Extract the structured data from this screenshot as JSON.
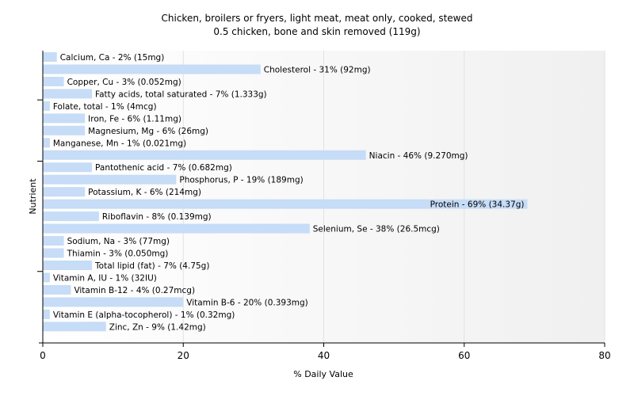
{
  "chart_data": {
    "type": "bar",
    "orientation": "horizontal",
    "title": "Chicken, broilers or fryers, light meat, meat only, cooked, stewed",
    "subtitle": "0.5 chicken, bone and skin removed (119g)",
    "xlabel": "% Daily Value",
    "ylabel": "Nutrient",
    "xlim": [
      0,
      80
    ],
    "xticks": [
      0,
      20,
      40,
      60,
      80
    ],
    "grid": true,
    "bar_color": "#c6dcf7",
    "categories": [
      "Calcium, Ca",
      "Cholesterol",
      "Copper, Cu",
      "Fatty acids, total saturated",
      "Folate, total",
      "Iron, Fe",
      "Magnesium, Mg",
      "Manganese, Mn",
      "Niacin",
      "Pantothenic acid",
      "Phosphorus, P",
      "Potassium, K",
      "Protein",
      "Riboflavin",
      "Selenium, Se",
      "Sodium, Na",
      "Thiamin",
      "Total lipid (fat)",
      "Vitamin A, IU",
      "Vitamin B-12",
      "Vitamin B-6",
      "Vitamin E (alpha-tocopherol)",
      "Zinc, Zn"
    ],
    "values": [
      2,
      31,
      3,
      7,
      1,
      6,
      6,
      1,
      46,
      7,
      19,
      6,
      69,
      8,
      38,
      3,
      3,
      7,
      1,
      4,
      20,
      1,
      9
    ],
    "labels": [
      "Calcium, Ca - 2% (15mg)",
      "Cholesterol - 31% (92mg)",
      "Copper, Cu - 3% (0.052mg)",
      "Fatty acids, total saturated - 7% (1.333g)",
      "Folate, total - 1% (4mcg)",
      "Iron, Fe - 6% (1.11mg)",
      "Magnesium, Mg - 6% (26mg)",
      "Manganese, Mn - 1% (0.021mg)",
      "Niacin - 46% (9.270mg)",
      "Pantothenic acid - 7% (0.682mg)",
      "Phosphorus, P - 19% (189mg)",
      "Potassium, K - 6% (214mg)",
      "Protein - 69% (34.37g)",
      "Riboflavin - 8% (0.139mg)",
      "Selenium, Se - 38% (26.5mcg)",
      "Sodium, Na - 3% (77mg)",
      "Thiamin - 3% (0.050mg)",
      "Total lipid (fat) - 7% (4.75g)",
      "Vitamin A, IU - 1% (32IU)",
      "Vitamin B-12 - 4% (0.27mcg)",
      "Vitamin B-6 - 20% (0.393mg)",
      "Vitamin E (alpha-tocopherol) - 1% (0.32mg)",
      "Zinc, Zn - 9% (1.42mg)"
    ]
  }
}
